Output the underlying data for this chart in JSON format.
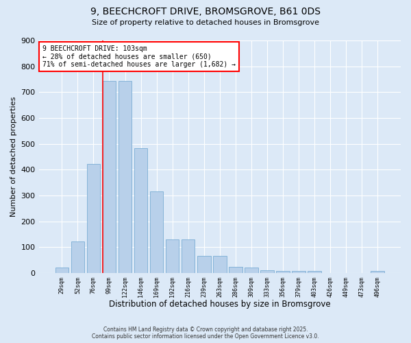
{
  "title1": "9, BEECHCROFT DRIVE, BROMSGROVE, B61 0DS",
  "title2": "Size of property relative to detached houses in Bromsgrove",
  "xlabel": "Distribution of detached houses by size in Bromsgrove",
  "ylabel": "Number of detached properties",
  "categories": [
    "29sqm",
    "52sqm",
    "76sqm",
    "99sqm",
    "122sqm",
    "146sqm",
    "169sqm",
    "192sqm",
    "216sqm",
    "239sqm",
    "263sqm",
    "286sqm",
    "309sqm",
    "333sqm",
    "356sqm",
    "379sqm",
    "403sqm",
    "426sqm",
    "449sqm",
    "473sqm",
    "496sqm"
  ],
  "values": [
    20,
    122,
    422,
    743,
    743,
    484,
    316,
    130,
    130,
    67,
    67,
    25,
    20,
    10,
    7,
    7,
    7,
    0,
    0,
    0,
    7
  ],
  "bar_color": "#b8d0ea",
  "bar_edge_color": "#7aadd4",
  "vline_index": 3,
  "vline_color": "red",
  "annotation_text": "9 BEECHCROFT DRIVE: 103sqm\n← 28% of detached houses are smaller (650)\n71% of semi-detached houses are larger (1,682) →",
  "annotation_box_color": "white",
  "annotation_box_edge_color": "red",
  "footer1": "Contains HM Land Registry data © Crown copyright and database right 2025.",
  "footer2": "Contains public sector information licensed under the Open Government Licence v3.0.",
  "bg_color": "#dce9f7",
  "plot_bg_color": "#dce9f7",
  "ylim": [
    0,
    900
  ],
  "yticks": [
    0,
    100,
    200,
    300,
    400,
    500,
    600,
    700,
    800,
    900
  ],
  "figwidth": 6.0,
  "figheight": 5.0,
  "dpi": 100
}
